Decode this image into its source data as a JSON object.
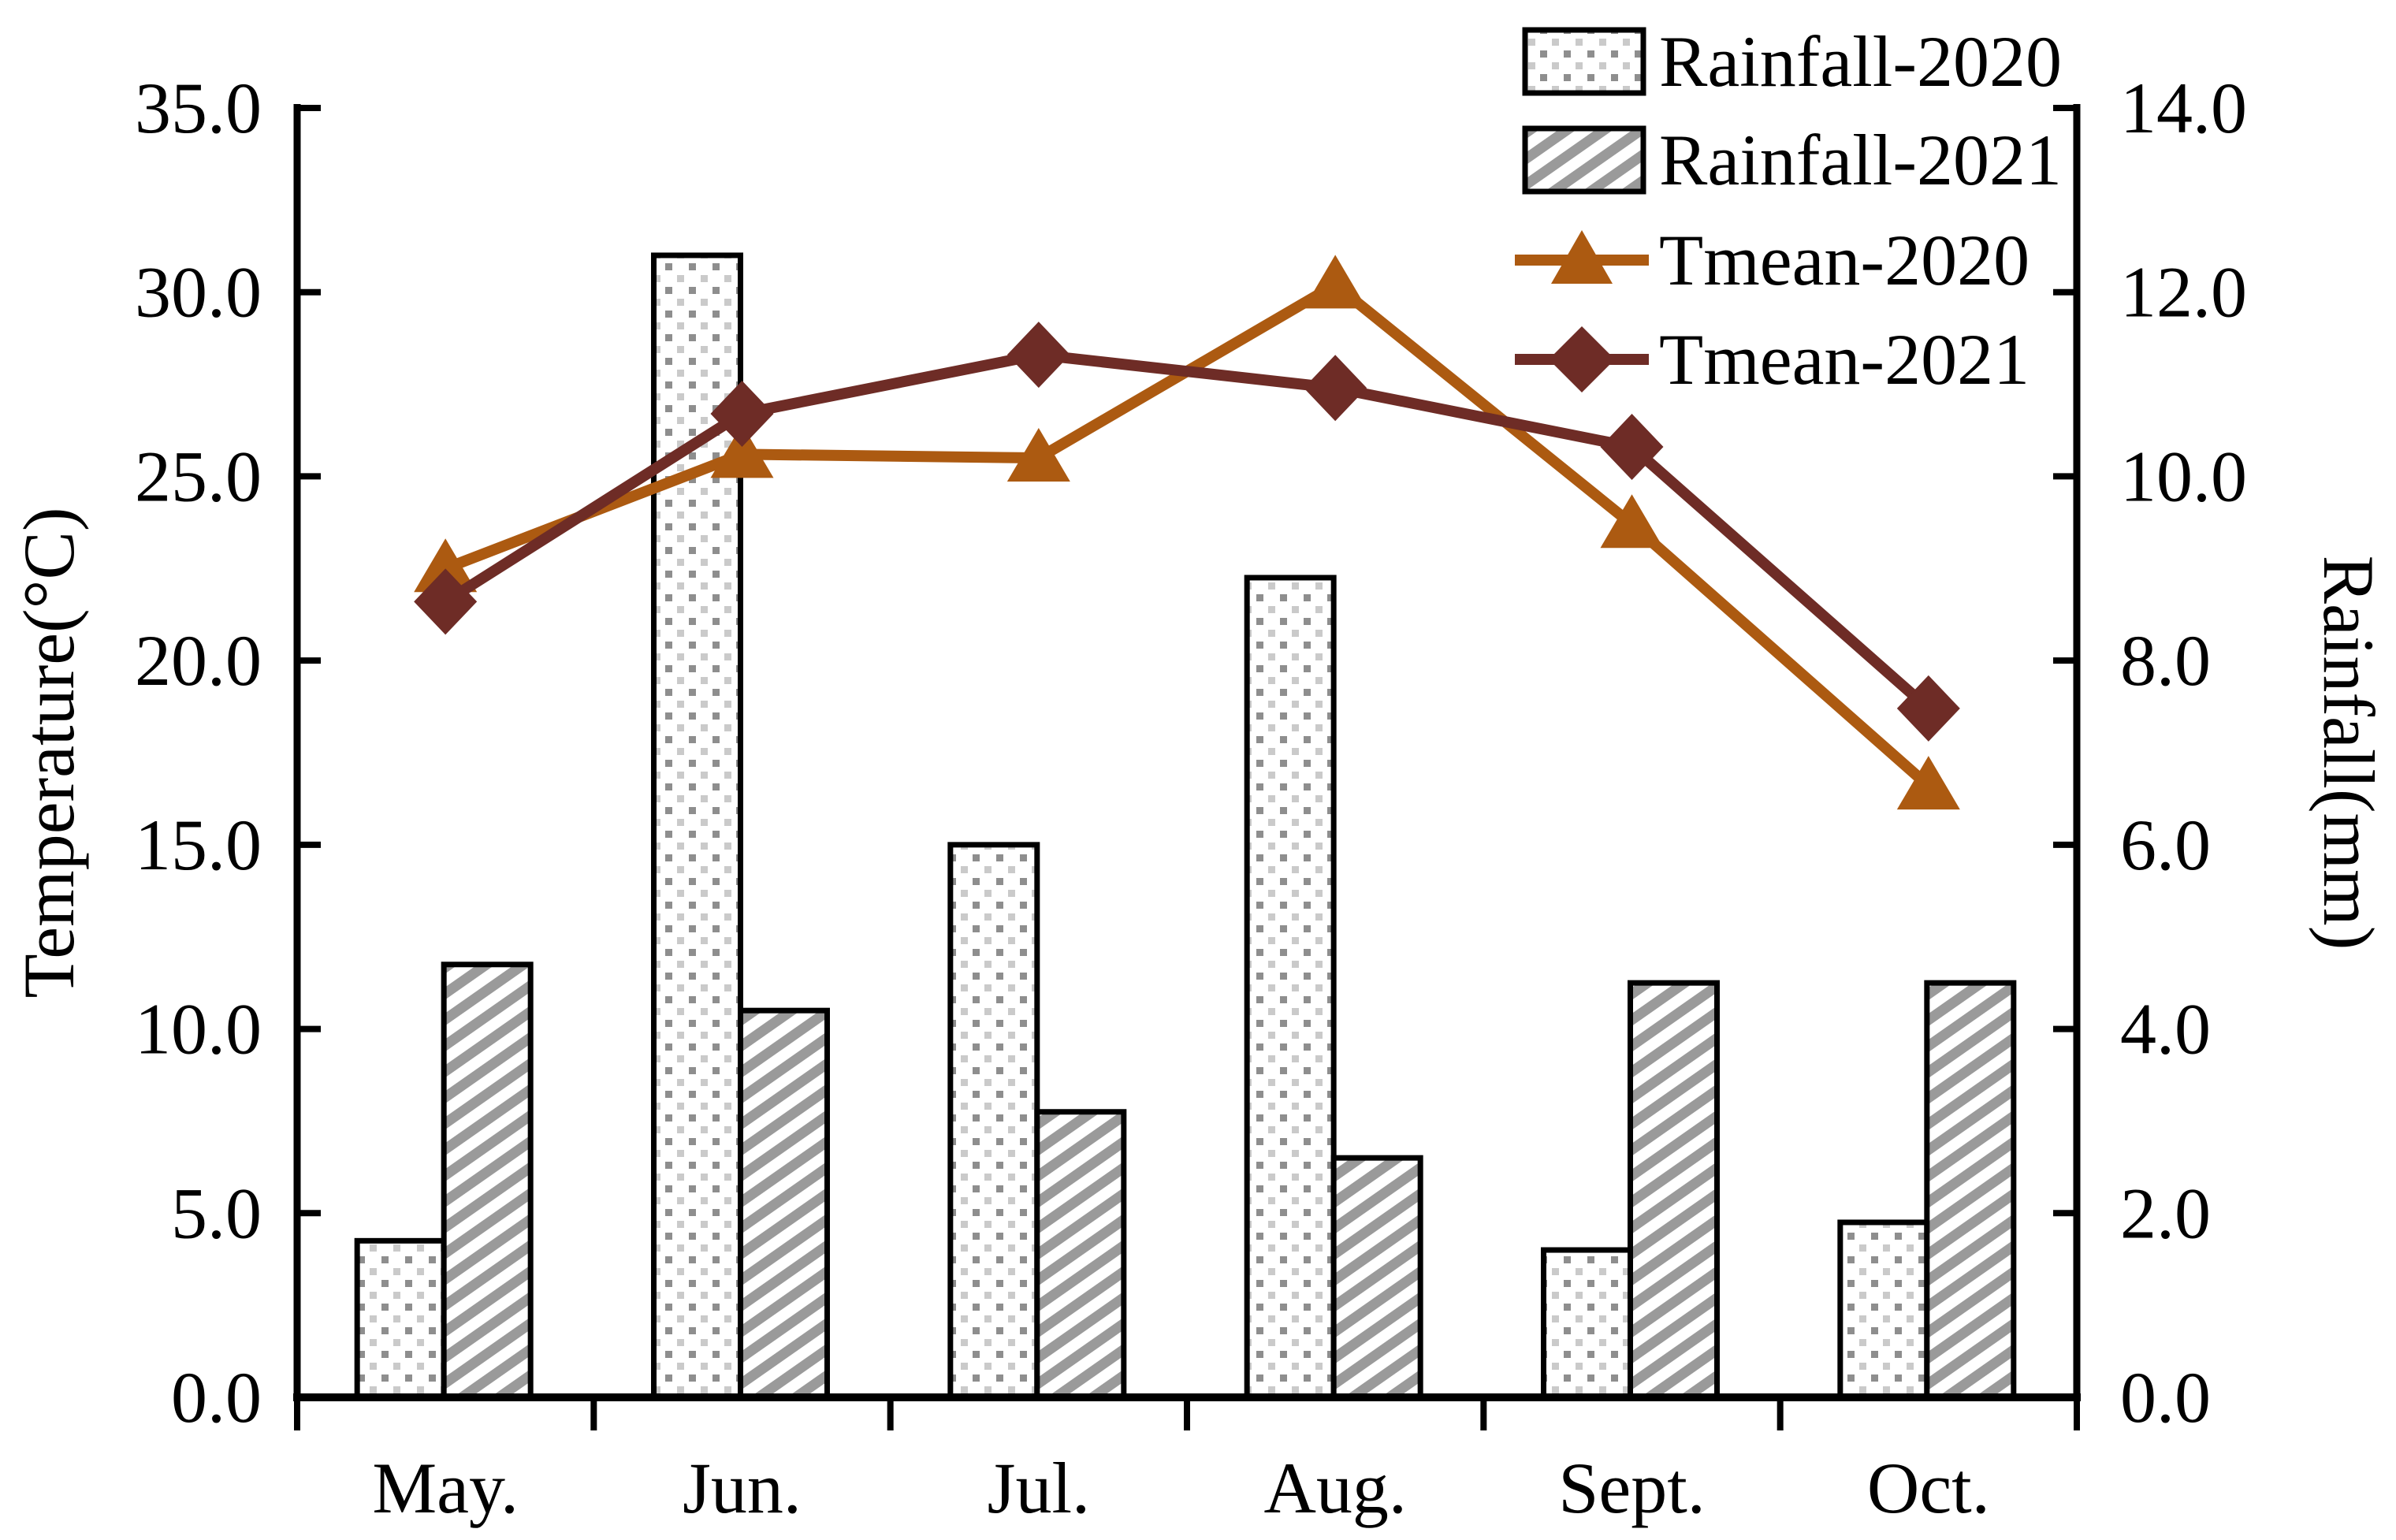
{
  "figure": {
    "background": "#FFFFFF",
    "text_color": "#000000",
    "axis_color": "#000000"
  },
  "chart_data": {
    "type": "combo-bar-line",
    "categories": [
      "May.",
      "Jun.",
      "Jul.",
      "Aug.",
      "Sept.",
      "Oct."
    ],
    "bar_series": [
      {
        "name": "Rainfall-2020",
        "axis": "right",
        "pattern": "dotted",
        "values": [
          1.7,
          12.4,
          6.0,
          8.9,
          1.6,
          1.9
        ]
      },
      {
        "name": "Rainfall-2021",
        "axis": "right",
        "pattern": "diagonal-hatch",
        "values": [
          4.7,
          4.2,
          3.1,
          2.6,
          4.5,
          4.5
        ]
      }
    ],
    "line_series": [
      {
        "name": "Tmean-2020",
        "axis": "left",
        "color": "#AC5A11",
        "marker": "triangle",
        "values": [
          22.5,
          25.6,
          25.5,
          30.2,
          23.7,
          16.6
        ]
      },
      {
        "name": "Tmean-2021",
        "axis": "left",
        "color": "#6E2C26",
        "marker": "diamond",
        "values": [
          21.6,
          26.7,
          28.3,
          27.4,
          25.8,
          18.7
        ]
      }
    ],
    "left_axis": {
      "label": "Temperature(°C)",
      "min": 0,
      "max": 35,
      "step": 5,
      "tick_labels": [
        "0.0",
        "5.0",
        "10.0",
        "15.0",
        "20.0",
        "25.0",
        "30.0",
        "35.0"
      ]
    },
    "right_axis": {
      "label": "Rainfall(mm)",
      "min": 0,
      "max": 14,
      "step": 2,
      "tick_labels": [
        "0.0",
        "2.0",
        "4.0",
        "6.0",
        "8.0",
        "10.0",
        "12.0",
        "14.0"
      ]
    },
    "legend": {
      "position": "top-right"
    },
    "grid": false,
    "pattern_gray": "#9A9A9A",
    "dot_gray_dark": "#8E8E8E",
    "dot_gray_light": "#CACACA"
  }
}
